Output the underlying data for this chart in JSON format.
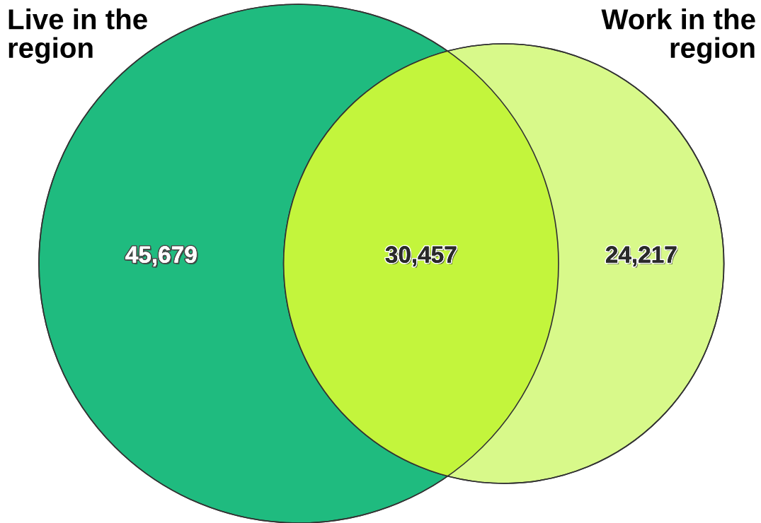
{
  "chart_data": {
    "type": "other",
    "categories": [
      null,
      null,
      null
    ],
    "values": [
      45679,
      30457,
      24217
    ],
    "value_labels": [
      "45,679",
      "30,457",
      "24,217"
    ],
    "colors": [
      "#1fbb7f",
      "#c3f53c",
      "#d8f98a"
    ],
    "annotations": [
      "Live in the\nregion",
      "Work in the\nregion"
    ]
  }
}
